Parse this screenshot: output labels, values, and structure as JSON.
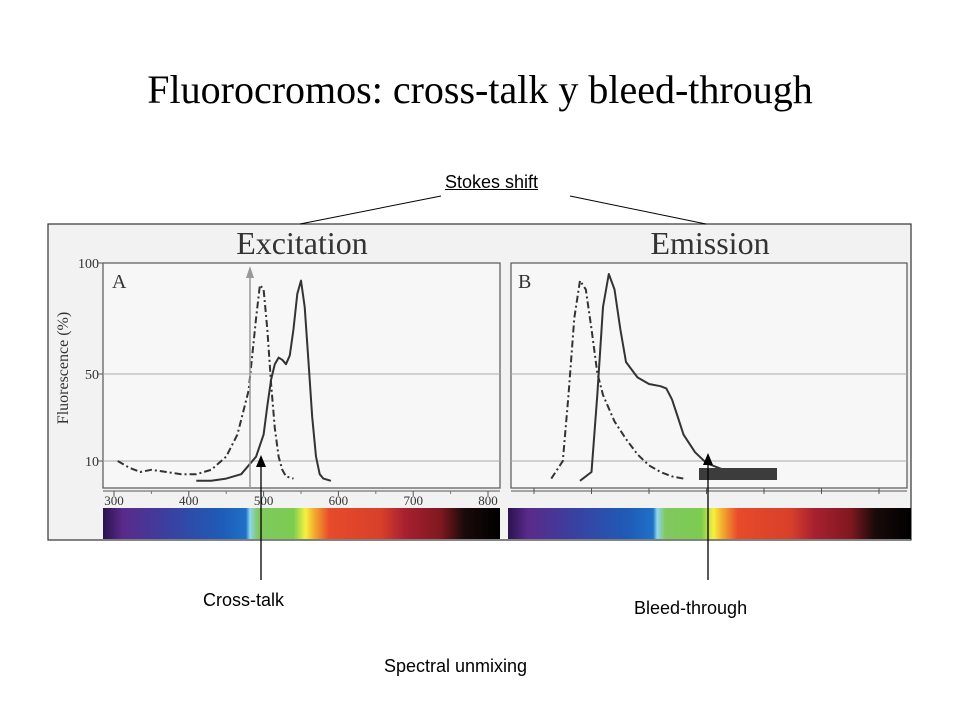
{
  "slide": {
    "title": "Fluorocromos: cross-talk y bleed-through"
  },
  "annotations": {
    "stokes_shift": "Stokes shift",
    "cross_talk": "Cross-talk",
    "bleed_through": "Bleed-through",
    "spectral_unmixing": "Spectral unmixing"
  },
  "chart_data": [
    {
      "type": "line",
      "title": "Excitation",
      "panel_label": "A",
      "ylabel": "Fluorescence (%)",
      "y_ticks": [
        100,
        50,
        10
      ],
      "x_ticks": [
        300,
        400,
        500,
        600,
        700,
        800
      ],
      "xlim": [
        300,
        800
      ],
      "ylim": [
        0,
        100
      ],
      "grid": "horizontal",
      "marker_wavelength": 488,
      "series": [
        {
          "style": "dash-dot",
          "x": [
            305,
            320,
            335,
            350,
            370,
            390,
            410,
            430,
            450,
            465,
            480,
            490,
            495,
            500,
            505,
            510,
            515,
            520,
            525,
            530,
            540
          ],
          "y": [
            10,
            7,
            5,
            6,
            5,
            4,
            4,
            6,
            12,
            22,
            42,
            75,
            90,
            88,
            70,
            45,
            25,
            12,
            6,
            3,
            2
          ]
        },
        {
          "style": "solid",
          "x": [
            410,
            430,
            450,
            470,
            490,
            500,
            505,
            510,
            515,
            520,
            525,
            530,
            535,
            540,
            545,
            550,
            555,
            560,
            565,
            570,
            575,
            580,
            590
          ],
          "y": [
            1,
            1,
            2,
            4,
            12,
            22,
            35,
            47,
            54,
            57,
            56,
            54,
            58,
            70,
            86,
            92,
            80,
            55,
            30,
            12,
            4,
            2,
            1
          ]
        }
      ],
      "color_bar": "visible spectrum 300-800 nm"
    },
    {
      "type": "line",
      "title": "Emission",
      "panel_label": "B",
      "grid": "horizontal",
      "series": [
        {
          "style": "dash-dot",
          "x": [
            465,
            475,
            480,
            485,
            490,
            495,
            500,
            505,
            510,
            520,
            530,
            540,
            550,
            560,
            570,
            580
          ],
          "y": [
            2,
            10,
            40,
            75,
            92,
            88,
            70,
            50,
            40,
            28,
            20,
            13,
            8,
            5,
            3,
            2
          ]
        },
        {
          "style": "solid",
          "x": [
            490,
            500,
            505,
            510,
            515,
            520,
            525,
            530,
            540,
            550,
            560,
            565,
            570,
            575,
            580,
            590,
            600,
            620,
            640,
            660
          ],
          "y": [
            1,
            5,
            40,
            80,
            95,
            88,
            70,
            55,
            48,
            45,
            44,
            43,
            38,
            30,
            22,
            14,
            9,
            5,
            3,
            2
          ]
        }
      ],
      "bleed_band": "dark filter bar",
      "color_bar": "visible spectrum"
    }
  ]
}
